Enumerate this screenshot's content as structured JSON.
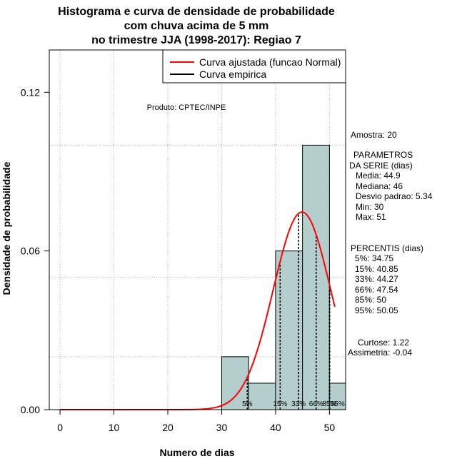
{
  "chart_data": {
    "type": "histogram",
    "title_lines": [
      "Histograma e curva de densidade de probabilidade",
      "com chuva acima de 5 mm",
      "no trimestre JJA (1998-2017): Regiao 7"
    ],
    "xlabel": "Numero de dias",
    "ylabel": "Densidade de probabilidade",
    "xlim": [
      -2,
      53
    ],
    "ylim": [
      0,
      0.136
    ],
    "x_ticks": [
      0,
      10,
      20,
      30,
      40,
      50
    ],
    "y_ticks": [
      0.0,
      0.06,
      0.12
    ],
    "y_tick_labels": [
      "0.00",
      "0.06",
      "0.12"
    ],
    "grid": true,
    "bins": [
      {
        "start": 30,
        "end": 35,
        "density": 0.02
      },
      {
        "start": 35,
        "end": 40,
        "density": 0.01
      },
      {
        "start": 40,
        "end": 45,
        "density": 0.06
      },
      {
        "start": 45,
        "end": 50,
        "density": 0.1
      },
      {
        "start": 50,
        "end": 55,
        "density": 0.01
      }
    ],
    "normal_fit": {
      "mean": 44.9,
      "sd": 5.34,
      "x_from": 0,
      "x_to": 51
    },
    "percentile_lines": [
      {
        "label": "5%",
        "value": 34.75
      },
      {
        "label": "15%",
        "value": 40.85
      },
      {
        "label": "33%",
        "value": 44.27
      },
      {
        "label": "66%",
        "value": 47.54
      },
      {
        "label": "85%",
        "value": 50
      },
      {
        "label": "95%",
        "value": 50.05
      }
    ],
    "legend": {
      "position": "top-right",
      "entries": [
        {
          "label": "Curva ajustada (funcao Normal)",
          "color": "#ff0000"
        },
        {
          "label": "Curva empirica",
          "color": "#000000"
        }
      ]
    },
    "product_label": "Produto: CPTEC/INPE",
    "colors": {
      "bar_fill": "#b4cdcd",
      "fit_line": "#ff0000",
      "grid": "#aaaaaa"
    }
  },
  "side_panel": {
    "sample": "Amostra: 20",
    "params_title_1": "PARAMETROS",
    "params_title_2": "DA SERIE (dias)",
    "params": [
      "Media: 44.9",
      "Mediana: 46",
      "Desvio padrao: 5.34",
      "Min: 30",
      "Max: 51"
    ],
    "percentis_title": "PERCENTIS (dias)",
    "percentis": [
      "5%: 34.75",
      "15%: 40.85",
      "33%: 44.27",
      "66%: 47.54",
      "85%: 50",
      "95%: 50.05"
    ],
    "curtose": "Curtose: 1.22",
    "assimetria": "Assimetria: -0.04"
  }
}
